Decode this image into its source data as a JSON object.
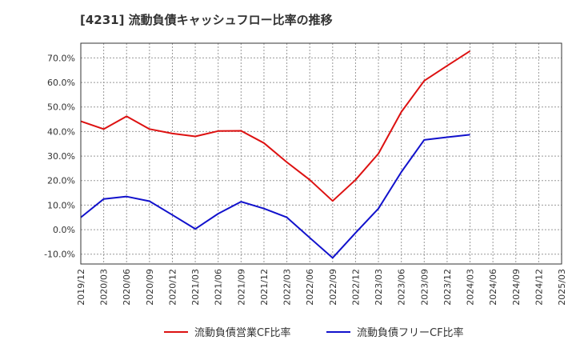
{
  "chart_data": {
    "type": "line",
    "title": "[4231]  流動負債キャッシュフロー比率の推移",
    "x": [
      "2019/12",
      "2020/03",
      "2020/06",
      "2020/09",
      "2020/12",
      "2021/03",
      "2021/06",
      "2021/09",
      "2021/12",
      "2022/03",
      "2022/06",
      "2022/09",
      "2022/12",
      "2023/03",
      "2023/06",
      "2023/09",
      "2023/12",
      "2024/03",
      "2024/06",
      "2024/09",
      "2024/12",
      "2025/03"
    ],
    "y_ticks": [
      "70.0%",
      "60.0%",
      "50.0%",
      "40.0%",
      "30.0%",
      "20.0%",
      "10.0%",
      "0.0%",
      "-10.0%"
    ],
    "y_tick_values": [
      70,
      60,
      50,
      40,
      30,
      20,
      10,
      0,
      -10
    ],
    "ylim": [
      -14,
      76
    ],
    "grid": true,
    "legend_position": "bottom",
    "series": [
      {
        "name": "流動負債営業CF比率",
        "color": "#dd1111",
        "values": [
          44.2,
          41.0,
          46.2,
          41.0,
          39.2,
          38.0,
          40.2,
          40.3,
          35.3,
          27.5,
          20.3,
          11.7,
          20.3,
          31.0,
          48.0,
          60.7,
          66.8,
          72.8,
          null,
          null,
          null,
          null
        ]
      },
      {
        "name": "流動負債フリーCF比率",
        "color": "#1111cc",
        "values": [
          5.0,
          12.5,
          13.5,
          11.6,
          6.0,
          0.3,
          6.5,
          11.4,
          8.6,
          5.0,
          -3.3,
          -11.5,
          -1.3,
          8.6,
          23.5,
          36.6,
          37.7,
          38.7,
          null,
          null,
          null,
          null
        ]
      }
    ]
  }
}
